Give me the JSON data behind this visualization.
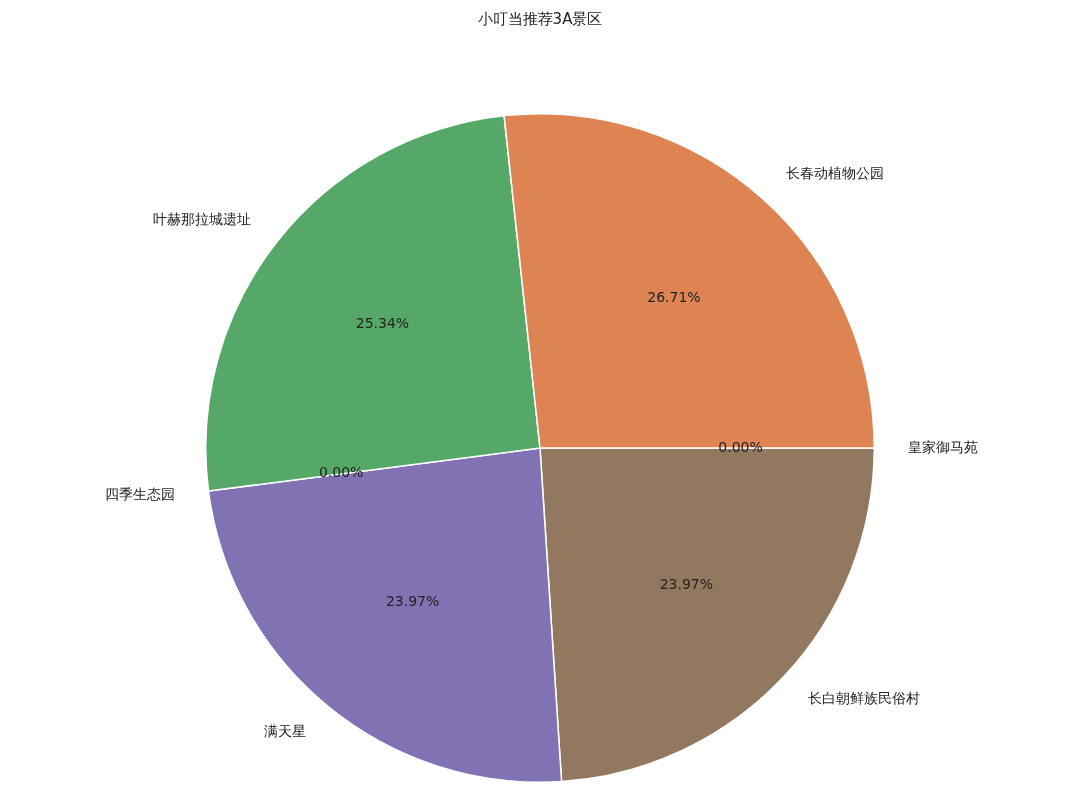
{
  "chart_data": {
    "type": "pie",
    "title": "小叮当推荐3A景区",
    "categories": [
      "皇家御马苑",
      "长春动植物公园",
      "叶赫那拉城遗址",
      "四季生态园",
      "满天星",
      "长白朝鲜族民俗村"
    ],
    "values": [
      0,
      26.71,
      25.34,
      0,
      23.97,
      23.97
    ],
    "colors": [
      "#4c72b0",
      "#dd8452",
      "#55a868",
      "#c44e52",
      "#8172b3",
      "#937860"
    ],
    "value_labels": [
      "0.00%",
      "26.71%",
      "25.34%",
      "0.00%",
      "23.97%",
      "23.97%"
    ],
    "legend": false
  }
}
